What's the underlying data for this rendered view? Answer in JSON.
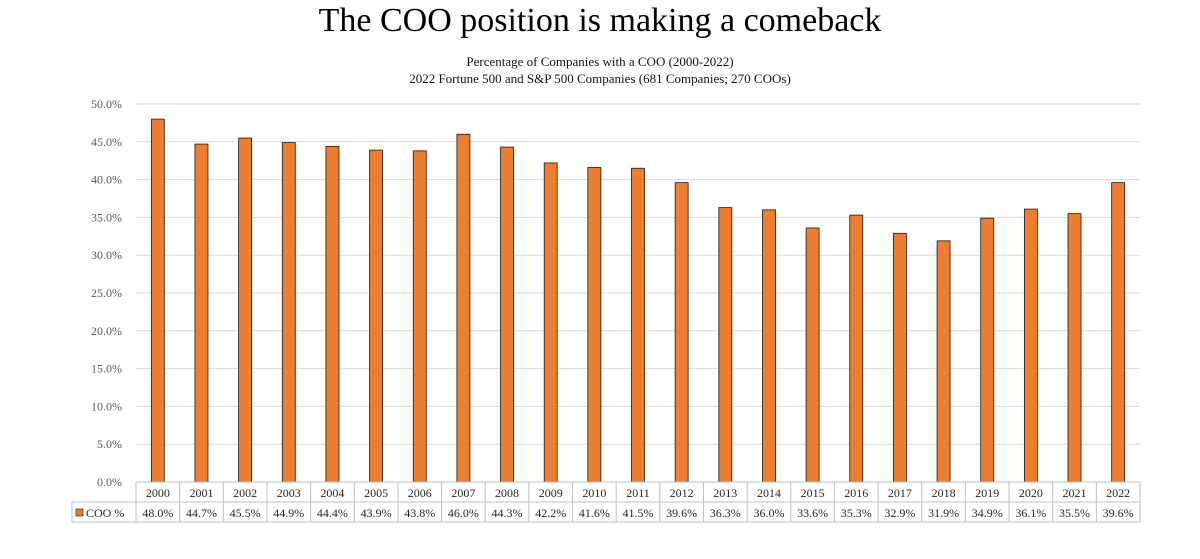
{
  "title": "The COO position is making a comeback",
  "subtitle_line1": "Percentage of Companies with a COO (2000-2022)",
  "subtitle_line2": "2022 Fortune 500 and S&P 500 Companies (681 Companies; 270 COOs)",
  "colors": {
    "bar_fill": "#ED7D31",
    "bar_stroke": "#1a1a1a",
    "grid": "#d9d9d9",
    "axis_text": "#595959",
    "table_border": "#bfbfbf"
  },
  "chart_data": {
    "type": "bar",
    "categories": [
      "2000",
      "2001",
      "2002",
      "2003",
      "2004",
      "2005",
      "2006",
      "2007",
      "2008",
      "2009",
      "2010",
      "2011",
      "2012",
      "2013",
      "2014",
      "2015",
      "2016",
      "2017",
      "2018",
      "2019",
      "2020",
      "2021",
      "2022"
    ],
    "series": [
      {
        "name": "COO %",
        "values": [
          48.0,
          44.7,
          45.5,
          44.9,
          44.4,
          43.9,
          43.8,
          46.0,
          44.3,
          42.2,
          41.6,
          41.5,
          39.6,
          36.3,
          36.0,
          33.6,
          35.3,
          32.9,
          31.9,
          34.9,
          36.1,
          35.5,
          39.6
        ],
        "labels": [
          "48.0%",
          "44.7%",
          "45.5%",
          "44.9%",
          "44.4%",
          "43.9%",
          "43.8%",
          "46.0%",
          "44.3%",
          "42.2%",
          "41.6%",
          "41.5%",
          "39.6%",
          "36.3%",
          "36.0%",
          "33.6%",
          "35.3%",
          "32.9%",
          "31.9%",
          "34.9%",
          "36.1%",
          "35.5%",
          "39.6%"
        ]
      }
    ],
    "ylim": [
      0,
      50
    ],
    "yticks": [
      0,
      5,
      10,
      15,
      20,
      25,
      30,
      35,
      40,
      45,
      50
    ],
    "ytick_labels": [
      "0.0%",
      "5.0%",
      "10.0%",
      "15.0%",
      "20.0%",
      "25.0%",
      "30.0%",
      "35.0%",
      "40.0%",
      "45.0%",
      "50.0%"
    ],
    "grid": true,
    "legend": "data-table-left"
  }
}
